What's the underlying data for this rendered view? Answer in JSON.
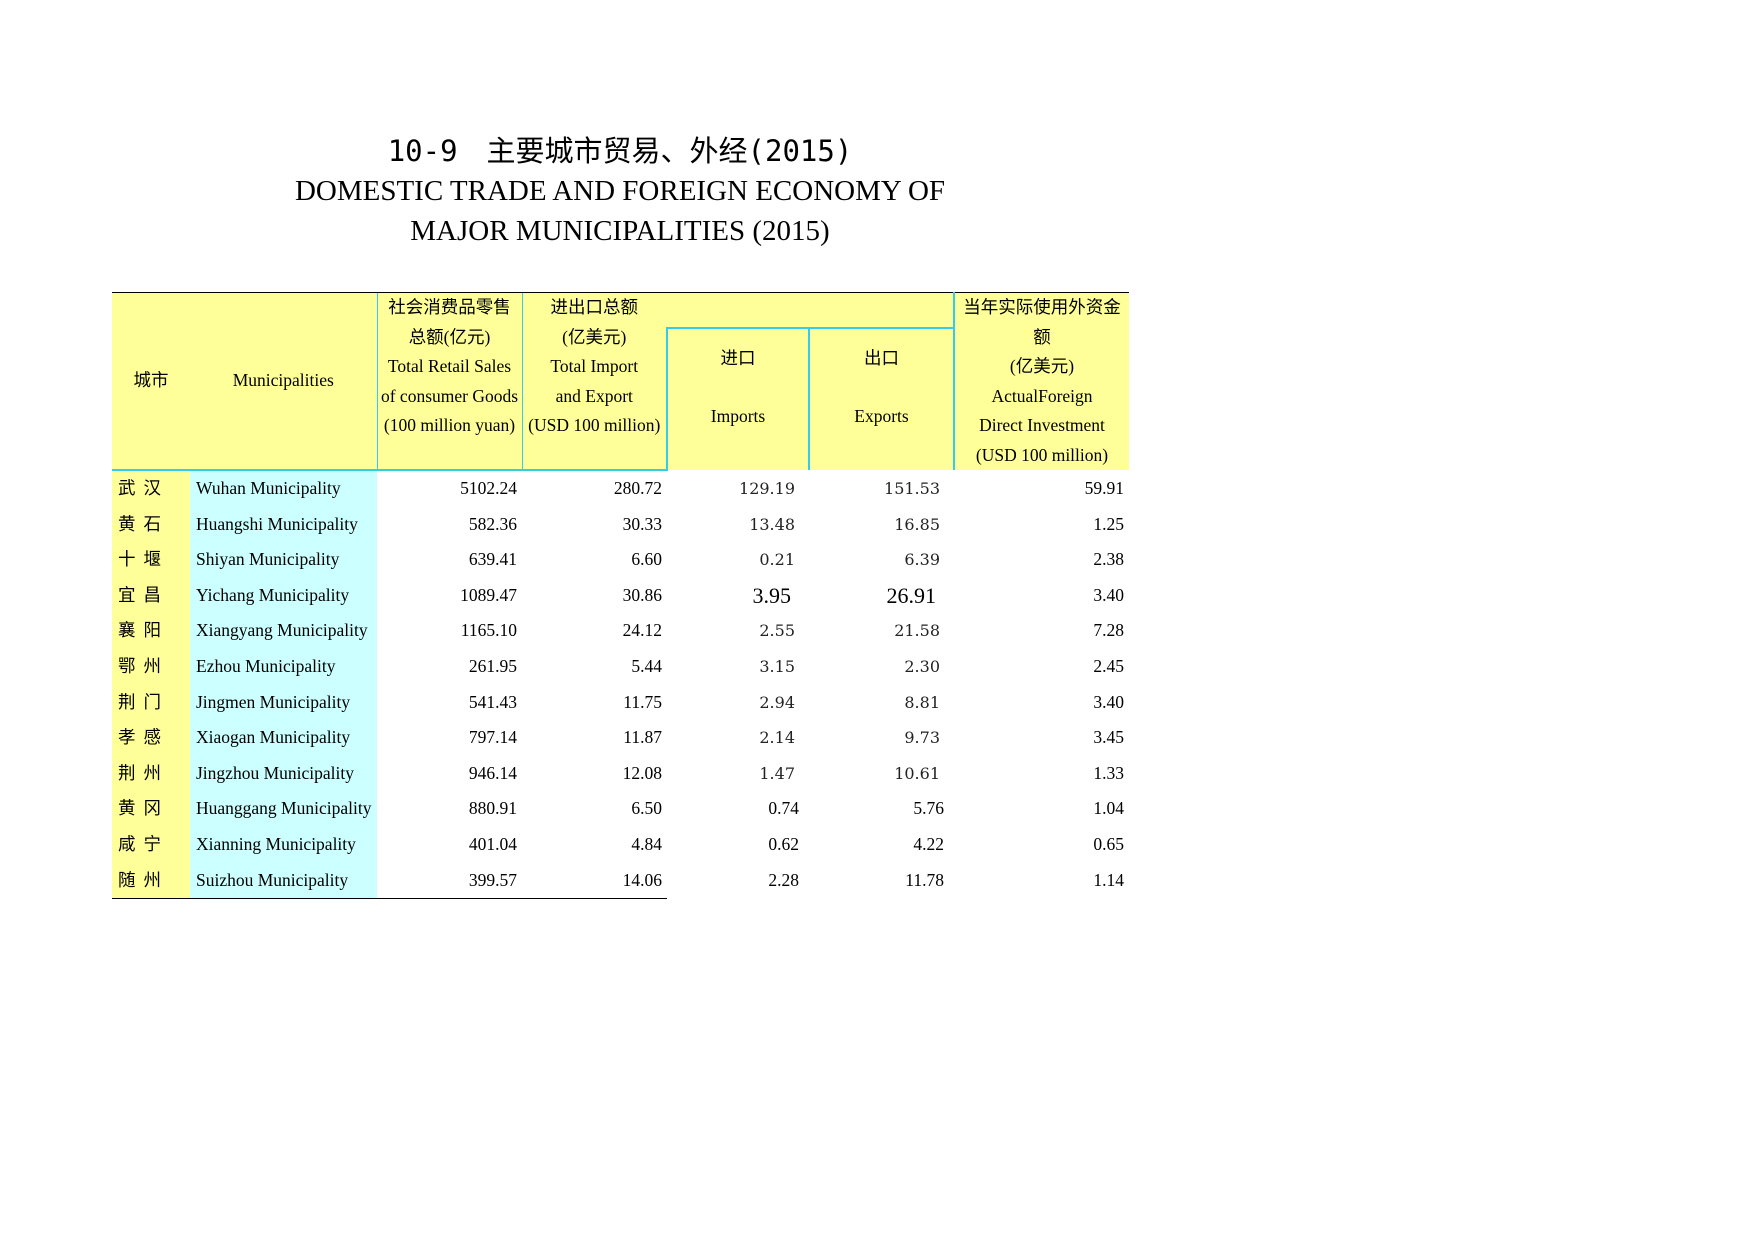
{
  "title": {
    "number_cn": "10-9　主要城市贸易、外经(2015)",
    "en_line1": "DOMESTIC TRADE AND FOREIGN ECONOMY OF",
    "en_line2": "MAJOR MUNICIPALITIES (2015)"
  },
  "header": {
    "city_cn": "城市",
    "city_en": "Municipalities",
    "retail": [
      "社会消费品零售",
      "总额(亿元)",
      "Total Retail Sales",
      "of consumer Goods",
      "(100 million yuan)"
    ],
    "trade": [
      "进出口总额",
      "(亿美元)",
      "Total Import",
      "and Export",
      "(USD 100 million)"
    ],
    "imports_cn": "进口",
    "imports_en": "Imports",
    "exports_cn": "出口",
    "exports_en": "Exports",
    "fdi": [
      "当年实际使用外资金额",
      "(亿美元)",
      "ActualForeign",
      "Direct Investment",
      "(USD 100 million)"
    ]
  },
  "rows": [
    {
      "cn": "武汉",
      "en": "Wuhan Municipality",
      "retail": "5102.24",
      "trade": "280.72",
      "imports": "129.19",
      "exports": "151.53",
      "fdi": "59.91"
    },
    {
      "cn": "黄石",
      "en": "Huangshi Municipality",
      "retail": "582.36",
      "trade": "30.33",
      "imports": "13.48",
      "exports": "16.85",
      "fdi": "1.25"
    },
    {
      "cn": "十堰",
      "en": "Shiyan Municipality",
      "retail": "639.41",
      "trade": "6.60",
      "imports": "0.21",
      "exports": "6.39",
      "fdi": "2.38"
    },
    {
      "cn": "宜昌",
      "en": "Yichang Municipality",
      "retail": "1089.47",
      "trade": "30.86",
      "imports": "3.95",
      "exports": "26.91",
      "fdi": "3.40"
    },
    {
      "cn": "襄阳",
      "en": "Xiangyang Municipality",
      "retail": "1165.10",
      "trade": "24.12",
      "imports": "2.55",
      "exports": "21.58",
      "fdi": "7.28"
    },
    {
      "cn": "鄂州",
      "en": "Ezhou Municipality",
      "retail": "261.95",
      "trade": "5.44",
      "imports": "3.15",
      "exports": "2.30",
      "fdi": "2.45"
    },
    {
      "cn": "荆门",
      "en": "Jingmen Municipality",
      "retail": "541.43",
      "trade": "11.75",
      "imports": "2.94",
      "exports": "8.81",
      "fdi": "3.40"
    },
    {
      "cn": "孝感",
      "en": "Xiaogan Municipality",
      "retail": "797.14",
      "trade": "11.87",
      "imports": "2.14",
      "exports": "9.73",
      "fdi": "3.45"
    },
    {
      "cn": "荆州",
      "en": "Jingzhou Municipality",
      "retail": "946.14",
      "trade": "12.08",
      "imports": "1.47",
      "exports": "10.61",
      "fdi": "1.33"
    },
    {
      "cn": "黄冈",
      "en": "Huanggang Municipality",
      "retail": "880.91",
      "trade": "6.50",
      "imports": "0.74",
      "exports": "5.76",
      "fdi": "1.04"
    },
    {
      "cn": "咸宁",
      "en": "Xianning Municipality",
      "retail": "401.04",
      "trade": "4.84",
      "imports": "0.62",
      "exports": "4.22",
      "fdi": "0.65"
    },
    {
      "cn": "随州",
      "en": "Suizhou Municipality",
      "retail": "399.57",
      "trade": "14.06",
      "imports": "2.28",
      "exports": "11.78",
      "fdi": "1.14"
    }
  ],
  "colors": {
    "header_bg": "#ffff99",
    "name_bg": "#ccffff",
    "rule": "#33ccee"
  }
}
